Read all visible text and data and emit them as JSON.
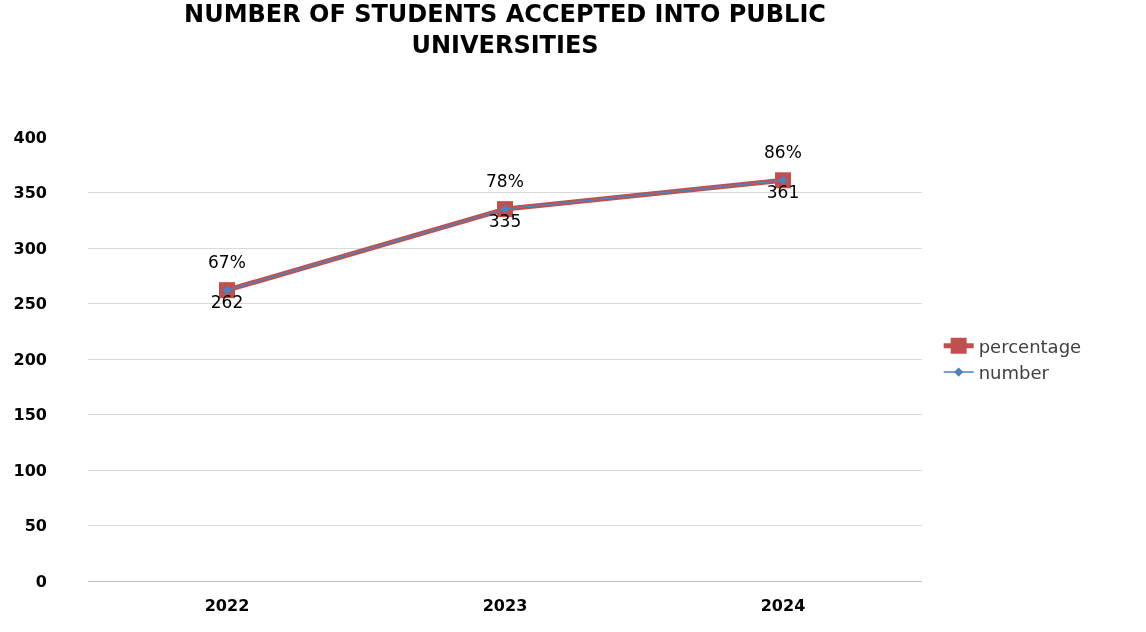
{
  "chart_data": {
    "type": "line",
    "title": "NUMBER OF STUDENTS ACCEPTED INTO PUBLIC\nUNIVERSITIES",
    "categories": [
      "2022",
      "2023",
      "2024"
    ],
    "series": [
      {
        "name": "percentage",
        "color": "#c0504d",
        "values": [
          262,
          335,
          361
        ],
        "marker": "square"
      },
      {
        "name": "number",
        "color": "#4f81bd",
        "values": [
          262,
          335,
          361
        ],
        "marker": "diamond",
        "value_labels": [
          "262",
          "335",
          "361"
        ]
      }
    ],
    "annotations": [
      {
        "text": "67%",
        "x": "2022",
        "y": 262
      },
      {
        "text": "78%",
        "x": "2023",
        "y": 335
      },
      {
        "text": "86%",
        "x": "2024",
        "y": 361
      }
    ],
    "ylim": [
      0,
      400
    ],
    "yticks": [
      0,
      50,
      100,
      150,
      200,
      250,
      300,
      350,
      400
    ],
    "grid": "y",
    "legend": "right",
    "line_style": "solid"
  }
}
